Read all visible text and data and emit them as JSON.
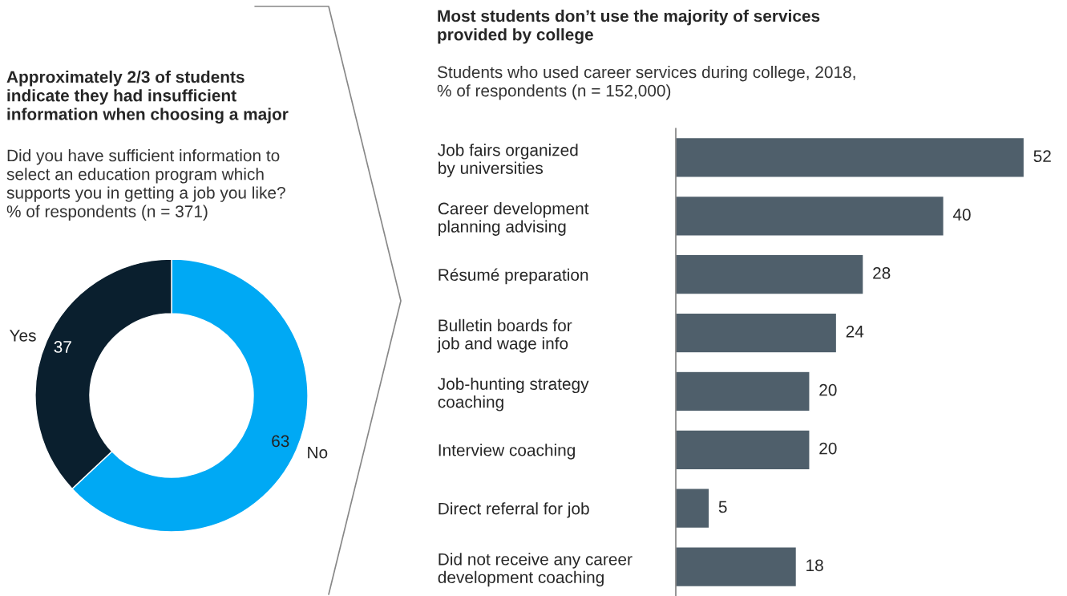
{
  "chart_data": [
    {
      "type": "donut",
      "title": "Approximately 2/3 of students\nindicate they had insufficient\ninformation when choosing a major",
      "subtitle": "Did you have sufficient information to\nselect an education program which\nsupports you in getting a job you like?\n% of respondents (n = 371)",
      "categories": [
        "No",
        "Yes"
      ],
      "values": [
        63,
        37
      ],
      "colors": [
        "#00a9f4",
        "#0a1f2e"
      ],
      "data_labels": true
    },
    {
      "type": "bar",
      "orientation": "horizontal",
      "title": "Most students don’t use the majority of services\nprovided by college",
      "subtitle": "Students who used career services during college, 2018,\n% of respondents (n = 152,000)",
      "categories": [
        "Job fairs organized\nby universities",
        "Career development\nplanning advising",
        "Résumé preparation",
        "Bulletin boards for\njob and wage info",
        "Job-hunting strategy\ncoaching",
        "Interview coaching",
        "Direct referral for job",
        "Did not receive any career\ndevelopment coaching"
      ],
      "values": [
        52,
        40,
        28,
        24,
        20,
        20,
        5,
        18
      ],
      "color": "#4f5f6b",
      "data_labels": true
    }
  ]
}
